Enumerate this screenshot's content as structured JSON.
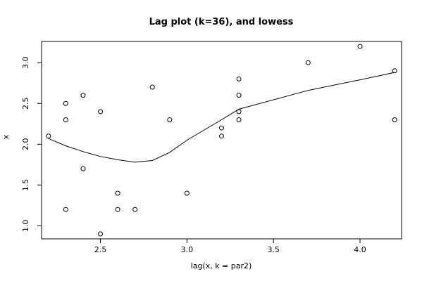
{
  "chart_data": {
    "type": "scatter",
    "title": "Lag plot (k=36), and lowess",
    "xlabel": "lag(x, k = par2)",
    "ylabel": "x",
    "xlim": [
      2.16,
      4.24
    ],
    "ylim": [
      0.84,
      3.26
    ],
    "xticks": [
      2.5,
      3.0,
      3.5,
      4.0
    ],
    "xtick_labels": [
      "2.5",
      "3.0",
      "3.5",
      "4.0"
    ],
    "yticks": [
      1.0,
      1.5,
      2.0,
      2.5,
      3.0
    ],
    "ytick_labels": [
      "1.0",
      "1.5",
      "2.0",
      "2.5",
      "3.0"
    ],
    "grid": false,
    "points": [
      {
        "x": 2.2,
        "y": 2.1
      },
      {
        "x": 2.3,
        "y": 2.5
      },
      {
        "x": 2.3,
        "y": 2.3
      },
      {
        "x": 2.3,
        "y": 1.2
      },
      {
        "x": 2.4,
        "y": 2.6
      },
      {
        "x": 2.4,
        "y": 1.7
      },
      {
        "x": 2.5,
        "y": 2.4
      },
      {
        "x": 2.5,
        "y": 0.9
      },
      {
        "x": 2.6,
        "y": 1.4
      },
      {
        "x": 2.6,
        "y": 1.2
      },
      {
        "x": 2.7,
        "y": 1.2
      },
      {
        "x": 2.8,
        "y": 2.7
      },
      {
        "x": 2.9,
        "y": 2.3
      },
      {
        "x": 3.0,
        "y": 1.4
      },
      {
        "x": 3.2,
        "y": 2.2
      },
      {
        "x": 3.2,
        "y": 2.1
      },
      {
        "x": 3.3,
        "y": 2.8
      },
      {
        "x": 3.3,
        "y": 2.6
      },
      {
        "x": 3.3,
        "y": 2.4
      },
      {
        "x": 3.3,
        "y": 2.3
      },
      {
        "x": 3.7,
        "y": 3.0
      },
      {
        "x": 4.0,
        "y": 3.2
      },
      {
        "x": 4.2,
        "y": 2.9
      },
      {
        "x": 4.2,
        "y": 2.3
      }
    ],
    "lowess": [
      {
        "x": 2.2,
        "y": 2.07
      },
      {
        "x": 2.3,
        "y": 1.98
      },
      {
        "x": 2.4,
        "y": 1.91
      },
      {
        "x": 2.5,
        "y": 1.85
      },
      {
        "x": 2.6,
        "y": 1.81
      },
      {
        "x": 2.7,
        "y": 1.78
      },
      {
        "x": 2.8,
        "y": 1.8
      },
      {
        "x": 2.9,
        "y": 1.9
      },
      {
        "x": 3.0,
        "y": 2.05
      },
      {
        "x": 3.2,
        "y": 2.3
      },
      {
        "x": 3.3,
        "y": 2.43
      },
      {
        "x": 3.7,
        "y": 2.66
      },
      {
        "x": 4.0,
        "y": 2.79
      },
      {
        "x": 4.2,
        "y": 2.88
      }
    ]
  }
}
